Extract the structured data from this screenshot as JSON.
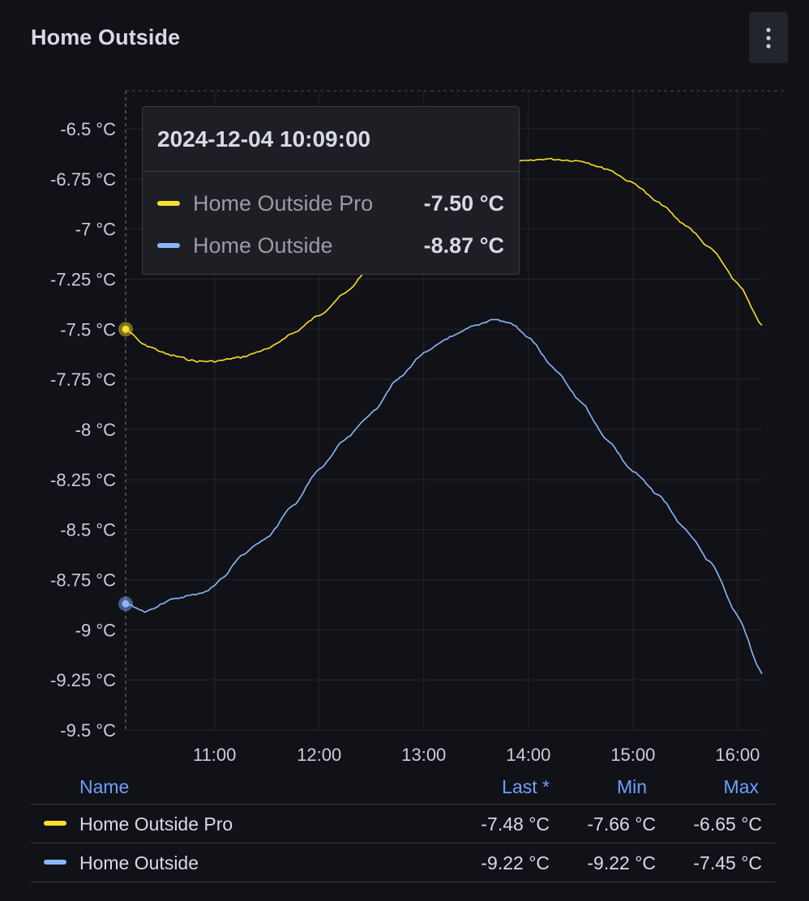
{
  "panel": {
    "title": "Home Outside"
  },
  "tooltip": {
    "time": "2024-12-04 10:09:00",
    "rows": [
      {
        "name": "Home Outside Pro",
        "value": "-7.50 °C",
        "color": "#fade2a"
      },
      {
        "name": "Home Outside",
        "value": "-8.87 °C",
        "color": "#8ab8ff"
      }
    ]
  },
  "legend": {
    "headers": {
      "name": "Name",
      "last": "Last *",
      "min": "Min",
      "max": "Max"
    },
    "rows": [
      {
        "name": "Home Outside Pro",
        "last": "-7.48 °C",
        "min": "-7.66 °C",
        "max": "-6.65 °C",
        "color": "#fade2a"
      },
      {
        "name": "Home Outside",
        "last": "-9.22 °C",
        "min": "-9.22 °C",
        "max": "-7.45 °C",
        "color": "#8ab8ff"
      }
    ]
  },
  "icons": {
    "menu": "vertical-ellipsis-icon"
  },
  "chart_data": {
    "type": "line",
    "x_unit": "time of day",
    "x_range": [
      "10:09",
      "16:14"
    ],
    "x_ticks": [
      "11:00",
      "12:00",
      "13:00",
      "14:00",
      "15:00",
      "16:00"
    ],
    "y_ticks": [
      "-6.5 °C",
      "-6.75 °C",
      "-7 °C",
      "-7.25 °C",
      "-7.5 °C",
      "-7.75 °C",
      "-8 °C",
      "-8.25 °C",
      "-8.5 °C",
      "-8.75 °C",
      "-9 °C",
      "-9.25 °C",
      "-9.5 °C"
    ],
    "ylim": [
      -9.5,
      -6.3
    ],
    "grid": true,
    "crosshair_time": "10:09",
    "series": [
      {
        "name": "Home Outside Pro",
        "color": "#fade2a",
        "points": [
          [
            "10:09",
            -7.5
          ],
          [
            "10:20",
            -7.58
          ],
          [
            "10:35",
            -7.63
          ],
          [
            "10:50",
            -7.66
          ],
          [
            "11:00",
            -7.66
          ],
          [
            "11:15",
            -7.64
          ],
          [
            "11:30",
            -7.6
          ],
          [
            "11:45",
            -7.52
          ],
          [
            "12:00",
            -7.43
          ],
          [
            "12:15",
            -7.32
          ],
          [
            "12:30",
            -7.18
          ],
          [
            "12:45",
            -7.03
          ],
          [
            "13:00",
            -6.9
          ],
          [
            "13:15",
            -6.8
          ],
          [
            "13:30",
            -6.72
          ],
          [
            "13:45",
            -6.67
          ],
          [
            "14:00",
            -6.66
          ],
          [
            "14:10",
            -6.65
          ],
          [
            "14:30",
            -6.66
          ],
          [
            "14:45",
            -6.7
          ],
          [
            "15:00",
            -6.77
          ],
          [
            "15:15",
            -6.87
          ],
          [
            "15:30",
            -6.98
          ],
          [
            "15:45",
            -7.1
          ],
          [
            "16:00",
            -7.27
          ],
          [
            "16:14",
            -7.48
          ]
        ]
      },
      {
        "name": "Home Outside",
        "color": "#8ab8ff",
        "points": [
          [
            "10:09",
            -8.87
          ],
          [
            "10:20",
            -8.91
          ],
          [
            "10:35",
            -8.85
          ],
          [
            "10:45",
            -8.83
          ],
          [
            "10:55",
            -8.81
          ],
          [
            "11:05",
            -8.74
          ],
          [
            "11:15",
            -8.63
          ],
          [
            "11:30",
            -8.54
          ],
          [
            "11:45",
            -8.38
          ],
          [
            "12:00",
            -8.2
          ],
          [
            "12:15",
            -8.05
          ],
          [
            "12:30",
            -7.92
          ],
          [
            "12:45",
            -7.75
          ],
          [
            "13:00",
            -7.62
          ],
          [
            "13:15",
            -7.54
          ],
          [
            "13:30",
            -7.48
          ],
          [
            "13:40",
            -7.45
          ],
          [
            "13:50",
            -7.47
          ],
          [
            "14:00",
            -7.54
          ],
          [
            "14:15",
            -7.7
          ],
          [
            "14:30",
            -7.86
          ],
          [
            "14:45",
            -8.05
          ],
          [
            "15:00",
            -8.21
          ],
          [
            "15:15",
            -8.33
          ],
          [
            "15:30",
            -8.5
          ],
          [
            "15:45",
            -8.67
          ],
          [
            "16:00",
            -8.93
          ],
          [
            "16:14",
            -9.22
          ]
        ]
      }
    ]
  }
}
